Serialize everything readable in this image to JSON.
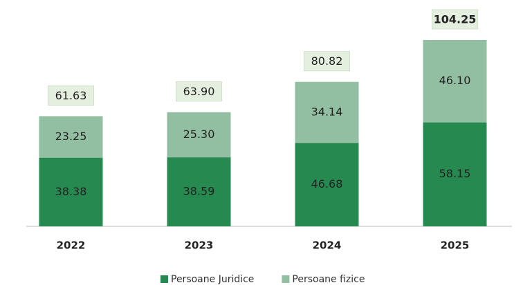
{
  "chart_data": {
    "type": "stacked_bar",
    "categories": [
      "2022",
      "2023",
      "2024",
      "2025"
    ],
    "series": [
      {
        "name": "Persoane Juridice",
        "color": "#26894f",
        "values": [
          38.38,
          38.59,
          46.68,
          58.15
        ]
      },
      {
        "name": "Persoane fizice",
        "color": "#92bfa1",
        "values": [
          23.25,
          25.3,
          34.14,
          46.1
        ],
        "value_labels": [
          "23.25",
          "25.30",
          "34.14",
          "46.10"
        ]
      }
    ],
    "totals": [
      61.63,
      63.9,
      80.82,
      104.25
    ],
    "total_labels": [
      "61.63",
      "63.90",
      "80.82",
      "104.25"
    ],
    "legend": "bottom"
  }
}
